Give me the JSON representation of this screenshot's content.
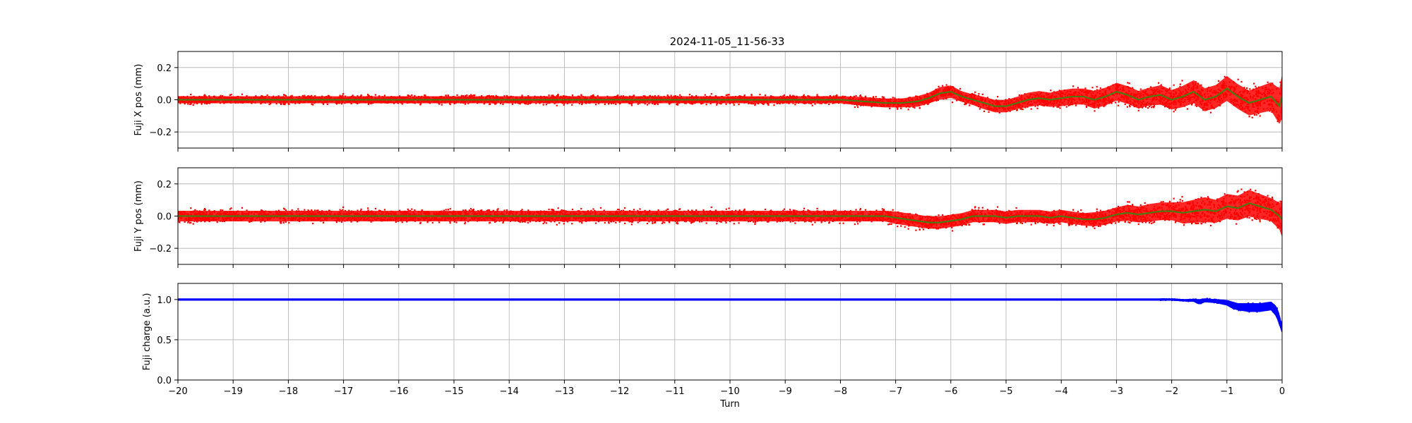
{
  "figure": {
    "title": "2024-11-05_11-56-33"
  },
  "chart_data": [
    {
      "type": "scatter",
      "ylabel": "Fuji X pos (mm)",
      "xlim": [
        -20,
        0
      ],
      "ylim": [
        -0.3,
        0.3
      ],
      "yticks": [
        "0.2",
        "0.0",
        "−0.2"
      ],
      "ytick_values": [
        0.2,
        0.0,
        -0.2
      ],
      "grid": true,
      "colors": {
        "points": "#ff0000",
        "trend": "#4a7a12"
      },
      "series": [
        {
          "style": "points",
          "envelope_x": [
            -20,
            -8,
            -7.6,
            -7.2,
            -6.9,
            -6.6,
            -6.4,
            -6.2,
            -6.0,
            -5.8,
            -5.6,
            -5.4,
            -5.2,
            -5.0,
            -4.8,
            -4.6,
            -4.4,
            -4.2,
            -4.0,
            -3.8,
            -3.6,
            -3.4,
            -3.2,
            -3.0,
            -2.8,
            -2.6,
            -2.4,
            -2.2,
            -2.0,
            -1.8,
            -1.6,
            -1.4,
            -1.2,
            -1.0,
            -0.8,
            -0.6,
            -0.4,
            -0.2,
            -0.05,
            0
          ],
          "envelope_center": [
            0.0,
            0.0,
            -0.01,
            -0.02,
            -0.02,
            -0.01,
            0.01,
            0.04,
            0.05,
            0.02,
            0.0,
            -0.02,
            -0.04,
            -0.04,
            -0.02,
            0.0,
            0.01,
            0.0,
            0.01,
            0.02,
            0.02,
            0.0,
            0.02,
            0.05,
            0.03,
            0.0,
            0.02,
            0.03,
            0.0,
            0.02,
            0.05,
            0.0,
            0.02,
            0.07,
            0.02,
            -0.02,
            0.0,
            0.02,
            -0.04,
            0.02
          ],
          "envelope_spread": [
            0.04,
            0.04,
            0.05,
            0.05,
            0.05,
            0.06,
            0.06,
            0.07,
            0.07,
            0.06,
            0.06,
            0.07,
            0.07,
            0.07,
            0.07,
            0.08,
            0.08,
            0.08,
            0.09,
            0.09,
            0.09,
            0.1,
            0.1,
            0.1,
            0.1,
            0.1,
            0.1,
            0.11,
            0.11,
            0.12,
            0.13,
            0.13,
            0.13,
            0.14,
            0.14,
            0.14,
            0.15,
            0.16,
            0.2,
            0.25
          ]
        },
        {
          "style": "line",
          "x": [
            -20,
            -8,
            -7.6,
            -7.2,
            -6.9,
            -6.6,
            -6.4,
            -6.2,
            -6.0,
            -5.8,
            -5.6,
            -5.4,
            -5.2,
            -5.0,
            -4.8,
            -4.6,
            -4.4,
            -4.2,
            -4.0,
            -3.8,
            -3.6,
            -3.4,
            -3.2,
            -3.0,
            -2.8,
            -2.6,
            -2.4,
            -2.2,
            -2.0,
            -1.8,
            -1.6,
            -1.4,
            -1.2,
            -1.0,
            -0.8,
            -0.6,
            -0.4,
            -0.2,
            -0.05,
            0
          ],
          "y": [
            0.0,
            0.0,
            -0.01,
            -0.02,
            -0.02,
            -0.01,
            0.01,
            0.04,
            0.05,
            0.02,
            0.0,
            -0.02,
            -0.04,
            -0.04,
            -0.02,
            0.0,
            0.01,
            0.0,
            0.01,
            0.02,
            0.02,
            0.0,
            0.02,
            0.05,
            0.03,
            0.0,
            0.02,
            0.03,
            0.0,
            0.02,
            0.05,
            0.0,
            0.02,
            0.07,
            0.02,
            -0.02,
            0.0,
            0.02,
            -0.04,
            0.02
          ]
        }
      ]
    },
    {
      "type": "scatter",
      "ylabel": "Fuji Y pos (mm)",
      "xlim": [
        -20,
        0
      ],
      "ylim": [
        -0.3,
        0.3
      ],
      "yticks": [
        "0.2",
        "0.0",
        "−0.2"
      ],
      "ytick_values": [
        0.2,
        0.0,
        -0.2
      ],
      "grid": true,
      "colors": {
        "points": "#ff0000",
        "trend": "#4a7a12"
      },
      "series": [
        {
          "style": "points",
          "envelope_x": [
            -20,
            -7.2,
            -7.0,
            -6.8,
            -6.6,
            -6.4,
            -6.2,
            -6.0,
            -5.8,
            -5.6,
            -5.4,
            -5.2,
            -5.0,
            -4.8,
            -4.6,
            -4.4,
            -4.2,
            -4.0,
            -3.8,
            -3.6,
            -3.4,
            -3.2,
            -3.0,
            -2.8,
            -2.6,
            -2.4,
            -2.2,
            -2.0,
            -1.8,
            -1.6,
            -1.4,
            -1.2,
            -1.0,
            -0.8,
            -0.6,
            -0.4,
            -0.2,
            -0.05,
            0
          ],
          "envelope_center": [
            0.0,
            0.0,
            -0.01,
            -0.02,
            -0.03,
            -0.04,
            -0.04,
            -0.03,
            -0.02,
            0.0,
            0.0,
            0.0,
            -0.01,
            0.0,
            0.0,
            0.0,
            -0.01,
            0.0,
            -0.01,
            -0.02,
            -0.02,
            -0.01,
            0.01,
            0.02,
            0.01,
            0.02,
            0.03,
            0.03,
            0.02,
            0.03,
            0.04,
            0.03,
            0.06,
            0.05,
            0.08,
            0.06,
            0.04,
            0.0,
            -0.02
          ],
          "envelope_spread": [
            0.06,
            0.06,
            0.07,
            0.07,
            0.07,
            0.07,
            0.07,
            0.07,
            0.07,
            0.07,
            0.07,
            0.07,
            0.07,
            0.07,
            0.07,
            0.07,
            0.07,
            0.07,
            0.07,
            0.07,
            0.08,
            0.08,
            0.08,
            0.09,
            0.09,
            0.1,
            0.1,
            0.1,
            0.12,
            0.13,
            0.14,
            0.13,
            0.14,
            0.14,
            0.15,
            0.14,
            0.13,
            0.15,
            0.2
          ]
        },
        {
          "style": "line",
          "x": [
            -20,
            -7.2,
            -7.0,
            -6.8,
            -6.6,
            -6.4,
            -6.2,
            -6.0,
            -5.8,
            -5.6,
            -5.4,
            -5.2,
            -5.0,
            -4.8,
            -4.6,
            -4.4,
            -4.2,
            -4.0,
            -3.8,
            -3.6,
            -3.4,
            -3.2,
            -3.0,
            -2.8,
            -2.6,
            -2.4,
            -2.2,
            -2.0,
            -1.8,
            -1.6,
            -1.4,
            -1.2,
            -1.0,
            -0.8,
            -0.6,
            -0.4,
            -0.2,
            -0.05,
            0
          ],
          "y": [
            0.0,
            0.0,
            -0.01,
            -0.02,
            -0.03,
            -0.04,
            -0.04,
            -0.03,
            -0.02,
            0.0,
            0.0,
            0.0,
            -0.01,
            0.0,
            0.0,
            0.0,
            -0.01,
            0.0,
            -0.01,
            -0.02,
            -0.02,
            -0.01,
            0.01,
            0.02,
            0.01,
            0.02,
            0.03,
            0.03,
            0.02,
            0.03,
            0.04,
            0.03,
            0.06,
            0.05,
            0.08,
            0.06,
            0.04,
            0.0,
            -0.02
          ]
        }
      ]
    },
    {
      "type": "line",
      "ylabel": "Fuji charge (a.u.)",
      "xlabel": "Turn",
      "xlim": [
        -20,
        0
      ],
      "ylim": [
        0.0,
        1.2
      ],
      "yticks": [
        "1.0",
        "0.5",
        "0.0"
      ],
      "ytick_values": [
        1.0,
        0.5,
        0.0
      ],
      "xticks": [
        "−20",
        "−19",
        "−18",
        "−17",
        "−16",
        "−15",
        "−14",
        "−13",
        "−12",
        "−11",
        "−10",
        "−9",
        "−8",
        "−7",
        "−6",
        "−5",
        "−4",
        "−3",
        "−2",
        "−1",
        "0"
      ],
      "xtick_values": [
        -20,
        -19,
        -18,
        -17,
        -16,
        -15,
        -14,
        -13,
        -12,
        -11,
        -10,
        -9,
        -8,
        -7,
        -6,
        -5,
        -4,
        -3,
        -2,
        -1,
        0
      ],
      "grid": true,
      "colors": {
        "line": "#0000ff"
      },
      "series": [
        {
          "x": [
            -20,
            -2.0,
            -1.8,
            -1.6,
            -1.5,
            -1.4,
            -1.2,
            -1.0,
            -0.9,
            -0.8,
            -0.6,
            -0.4,
            -0.2,
            -0.1,
            -0.05,
            0
          ],
          "y": [
            1.0,
            1.0,
            0.99,
            0.99,
            0.97,
            0.99,
            0.98,
            0.96,
            0.93,
            0.91,
            0.9,
            0.9,
            0.92,
            0.85,
            0.75,
            0.63
          ],
          "spread": [
            0.01,
            0.01,
            0.01,
            0.015,
            0.03,
            0.02,
            0.02,
            0.03,
            0.04,
            0.04,
            0.05,
            0.05,
            0.05,
            0.06,
            0.06,
            0.04
          ]
        }
      ]
    }
  ]
}
